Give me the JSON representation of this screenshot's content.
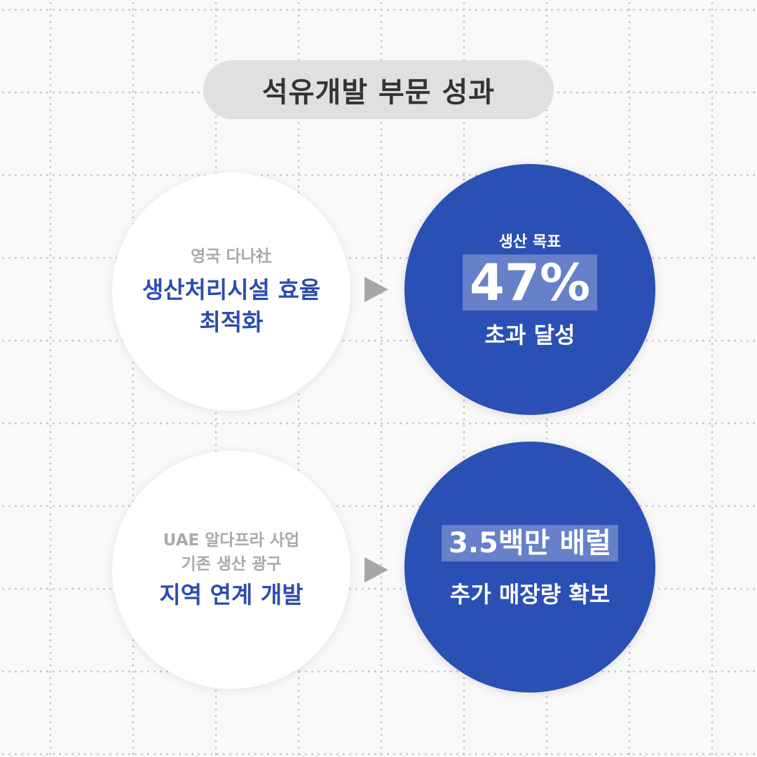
{
  "title": "석유개발 부문 성과",
  "items": [
    {
      "source_sub": "영국 다나社",
      "source_main": [
        "생산처리시설 효율",
        "최적화"
      ],
      "result_small": "생산 목표",
      "result_highlight": "47%",
      "result_main": "초과 달성"
    },
    {
      "source_sub": [
        "UAE 알다프라 사업",
        "기존 생산 광구"
      ],
      "source_main": "지역 연계 개발",
      "result_highlight": "3.5백만 배럴",
      "result_main": "추가 매장량 확보"
    }
  ],
  "colors": {
    "blue": "#2b50b5",
    "title_bg": "#e0e0e0",
    "arrow": "#a6a6a6"
  },
  "icons": {
    "arrow": "play-triangle-icon"
  }
}
